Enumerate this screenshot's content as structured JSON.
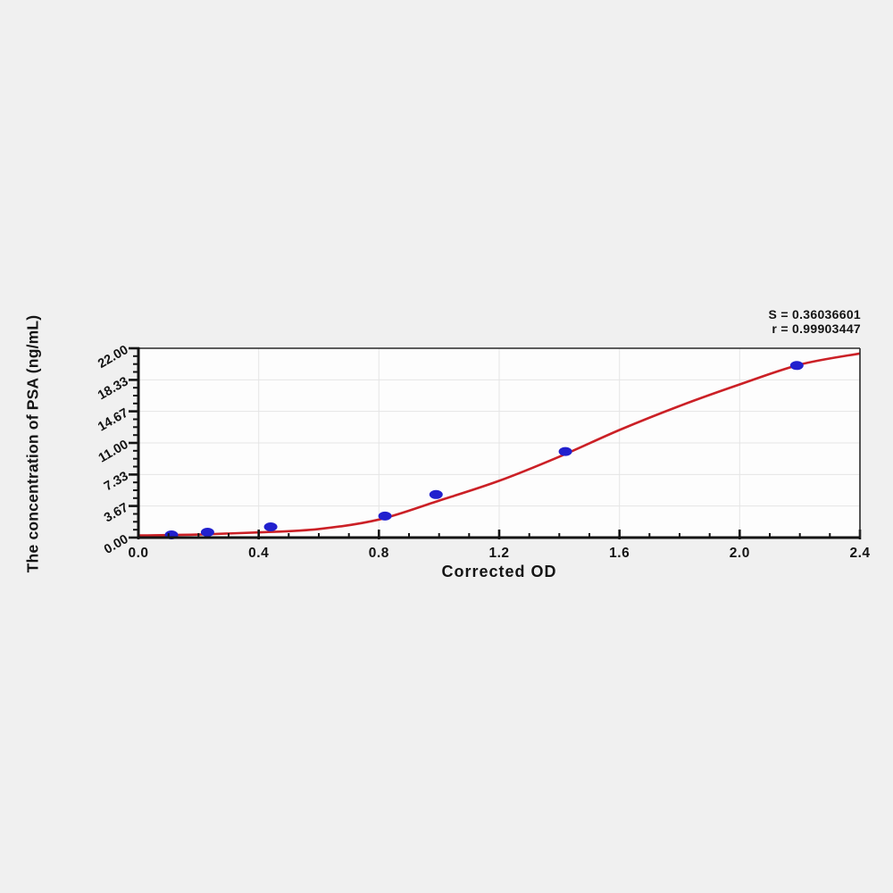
{
  "figure": {
    "background_color": "#f0f0f0",
    "stats": {
      "line1": "S = 0.36036601",
      "line2": "r = 0.99903447"
    }
  },
  "chart_data": {
    "type": "scatter",
    "title": "",
    "xlabel": "Corrected OD",
    "ylabel": "The concentration of PSA (ng/mL)",
    "xlim": [
      0,
      2.4
    ],
    "ylim": [
      0,
      22
    ],
    "grid": true,
    "legend": "none",
    "x_ticks": {
      "values": [
        0,
        0.4,
        0.8,
        1.2,
        1.6,
        2.0,
        2.4
      ],
      "labels": [
        "0.0",
        "0.4",
        "0.8",
        "1.2",
        "1.6",
        "2.0",
        "2.4"
      ],
      "minor_step": 0.1
    },
    "y_ticks": {
      "values": [
        0,
        3.67,
        7.33,
        11.0,
        14.67,
        18.33,
        22.0
      ],
      "labels": [
        "0.00",
        "3.67",
        "7.33",
        "11.00",
        "14.67",
        "18.33",
        "22.00"
      ],
      "minor_per_major": 3
    },
    "series": [
      {
        "name": "standard-points",
        "type": "scatter",
        "x": [
          0.11,
          0.23,
          0.44,
          0.82,
          0.99,
          1.42,
          2.19
        ],
        "y": [
          0.313,
          0.625,
          1.25,
          2.5,
          5,
          10,
          20
        ]
      },
      {
        "name": "fitted-4pl-curve",
        "type": "line",
        "samples": [
          [
            0.0,
            0.25
          ],
          [
            0.2,
            0.35
          ],
          [
            0.4,
            0.6
          ],
          [
            0.6,
            1.0
          ],
          [
            0.8,
            2.1
          ],
          [
            1.0,
            4.3
          ],
          [
            1.2,
            6.6
          ],
          [
            1.4,
            9.4
          ],
          [
            1.6,
            12.5
          ],
          [
            1.8,
            15.3
          ],
          [
            2.0,
            17.8
          ],
          [
            2.2,
            20.1
          ],
          [
            2.4,
            21.4
          ]
        ]
      }
    ],
    "colors": {
      "curve": "#cb2026",
      "point_fill": "#2120ce",
      "axis": "#141414",
      "grid": "#e5e5e5",
      "plot_bg": "#fdfdfd",
      "text": "#141414"
    }
  }
}
